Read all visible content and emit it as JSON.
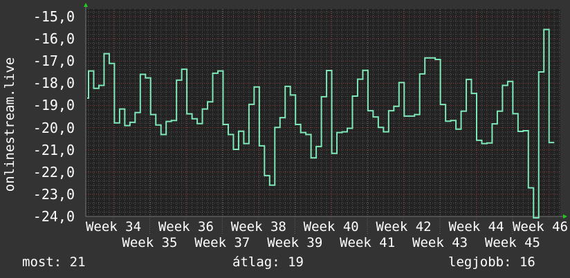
{
  "chart_data": {
    "type": "line",
    "step": true,
    "title": "",
    "ylabel": "onlinestream.live",
    "xlabel": "",
    "ylim": [
      -24.0,
      -15.0
    ],
    "y_ticks": [
      "-15,0",
      "-16,0",
      "-17,0",
      "-18,0",
      "-19,0",
      "-20,0",
      "-21,0",
      "-22,0",
      "-23,0",
      "-24,0"
    ],
    "x_ticks": [
      "Week 34",
      "Week 35",
      "Week 36",
      "Week 37",
      "Week 38",
      "Week 39",
      "Week 40",
      "Week 41",
      "Week 42",
      "Week 43",
      "Week 44",
      "Week 45",
      "Week 46"
    ],
    "grid": true,
    "colors": {
      "background": "#333333",
      "plot": "#222222",
      "line": "#7ee8b8",
      "major_grid": "#8a3a3a",
      "minor_grid": "#555555",
      "arrow": "#22cc22"
    },
    "series": [
      {
        "values": [
          -18.67,
          -17.45,
          -18.23,
          -18.1,
          -16.67,
          -17.11,
          -19.79,
          -19.16,
          -19.91,
          -19.76,
          -19.32,
          -17.6,
          -17.76,
          -19.41,
          -19.88,
          -20.31,
          -19.72,
          -19.68,
          -17.86,
          -17.37,
          -19.38,
          -19.6,
          -19.82,
          -19.16,
          -18.84,
          -17.55,
          -17.45,
          -19.86,
          -20.31,
          -20.98,
          -20.16,
          -20.72,
          -18.95,
          -18.17,
          -20.82,
          -22.16,
          -22.59,
          -19.99,
          -19.55,
          -18.14,
          -18.53,
          -19.86,
          -20.22,
          -20.31,
          -21.36,
          -20.85,
          -18.61,
          -17.43,
          -21.16,
          -20.22,
          -20.19,
          -20.03,
          -18.58,
          -17.82,
          -17.42,
          -19.24,
          -19.52,
          -19.99,
          -20.19,
          -19.24,
          -19.04,
          -17.97,
          -19.48,
          -19.48,
          -19.41,
          -17.58,
          -16.86,
          -16.86,
          -16.93,
          -18.96,
          -19.71,
          -19.68,
          -20.07,
          -19.26,
          -17.83,
          -18.46,
          -20.57,
          -20.72,
          -20.69,
          -19.83,
          -19.26,
          -18.1,
          -17.92,
          -19.37,
          -20.17,
          -20.14,
          -22.71,
          -24.1,
          -17.49,
          -15.58,
          -20.67
        ]
      }
    ]
  },
  "footer": {
    "current": "most: 21",
    "average": "átlag: 19",
    "best": "legjobb: 16"
  }
}
